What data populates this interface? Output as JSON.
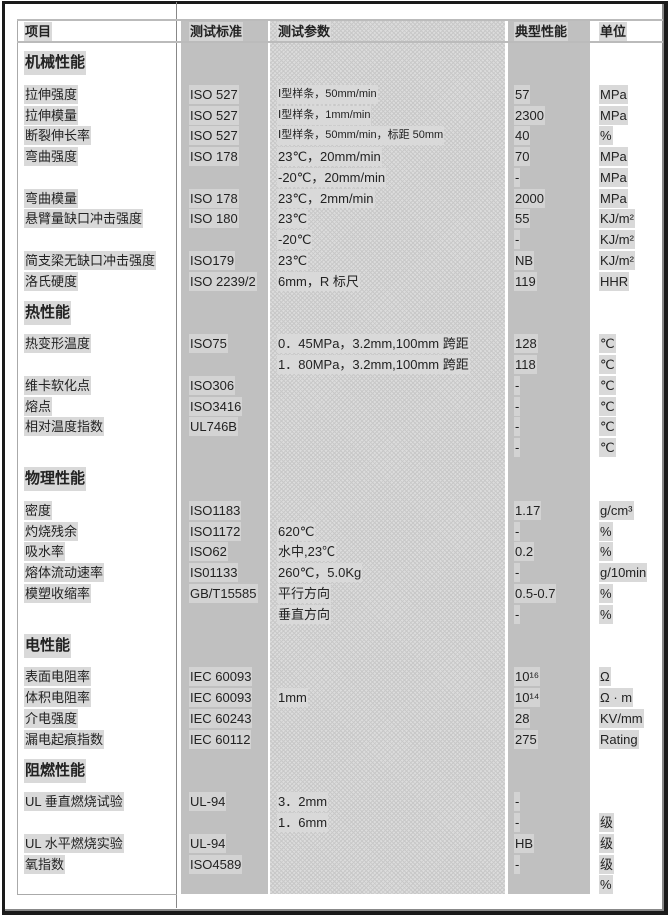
{
  "header": {
    "item": "项目",
    "standard": "测试标准",
    "params": "测试参数",
    "typical": "典型性能",
    "unit": "单位"
  },
  "rows": [
    {
      "type": "section",
      "item": "机械性能"
    },
    {
      "item": "拉伸强度",
      "std": "ISO 527",
      "param": "Ⅰ型样条，50mm/min",
      "value": "57",
      "unit": "MPa",
      "small": true
    },
    {
      "item": "拉伸模量",
      "std": "ISO 527",
      "param": "Ⅰ型样条，1mm/min",
      "value": "2300",
      "unit": "MPa",
      "small": true
    },
    {
      "item": "断裂伸长率",
      "std": "ISO 527",
      "param": "Ⅰ型样条，50mm/min，标距 50mm",
      "value": "40",
      "unit": "%",
      "small": true
    },
    {
      "item": "弯曲强度",
      "std": "ISO 178",
      "param": "23℃，20mm/min",
      "value": "70",
      "unit": "MPa"
    },
    {
      "item": "",
      "std": "",
      "param": "-20℃，20mm/min",
      "value": "-",
      "unit": "MPa"
    },
    {
      "item": "弯曲模量",
      "std": "ISO 178",
      "param": "23℃，2mm/min",
      "value": "2000",
      "unit": "MPa"
    },
    {
      "item": "悬臂量缺口冲击强度",
      "std": "ISO 180",
      "param": "23℃",
      "value": "55",
      "unit": "KJ/m²"
    },
    {
      "item": "",
      "std": "",
      "param": "-20℃",
      "value": "-",
      "unit": "KJ/m²"
    },
    {
      "item": "简支梁无缺口冲击强度",
      "std": "ISO179",
      "param": "23℃",
      "value": "NB",
      "unit": "KJ/m²"
    },
    {
      "item": "洛氏硬度",
      "std": "ISO 2239/2",
      "param": "6mm，R 标尺",
      "value": "119",
      "unit": "HHR"
    },
    {
      "type": "section",
      "item": "热性能"
    },
    {
      "item": "热变形温度",
      "std": "ISO75",
      "param": "0．45MPa，3.2mm,100mm 跨距",
      "value": "128",
      "unit": "℃"
    },
    {
      "item": "",
      "std": "",
      "param": "1．80MPa，3.2mm,100mm 跨距",
      "value": "118",
      "unit": "℃"
    },
    {
      "item": "维卡软化点",
      "std": "ISO306",
      "param": "",
      "value": "-",
      "unit": "℃"
    },
    {
      "item": "熔点",
      "std": "ISO3416",
      "param": "",
      "value": "-",
      "unit": "℃"
    },
    {
      "item": "相对温度指数",
      "std": "UL746B",
      "param": "",
      "value": "-",
      "unit": "℃"
    },
    {
      "item": "",
      "std": "",
      "param": "",
      "value": "-",
      "unit": "℃"
    },
    {
      "type": "section",
      "item": "物理性能"
    },
    {
      "item": "密度",
      "std": "ISO1183",
      "param": "",
      "value": "1.17",
      "unit": "g/cm³"
    },
    {
      "item": "灼烧残余",
      "std": "ISO1172",
      "param": "620℃",
      "value": "-",
      "unit": "%"
    },
    {
      "item": "吸水率",
      "std": "ISO62",
      "param": "水中,23℃",
      "value": "0.2",
      "unit": "%"
    },
    {
      "item": "熔体流动速率",
      "std": "IS01133",
      "param": "260℃，5.0Kg",
      "value": "-",
      "unit": "g/10min"
    },
    {
      "item": "模塑收缩率",
      "std": "GB/T15585",
      "param": "平行方向",
      "value": "0.5-0.7",
      "unit": "%"
    },
    {
      "item": "",
      "std": "",
      "param": "垂直方向",
      "value": "-",
      "unit": "%"
    },
    {
      "type": "section",
      "item": "电性能"
    },
    {
      "item": "表面电阻率",
      "std": "IEC 60093",
      "param": "",
      "value": "10¹⁶",
      "unit": "Ω"
    },
    {
      "item": "体积电阻率",
      "std": "IEC 60093",
      "param": "1mm",
      "value": "10¹⁴",
      "unit": "Ω · m"
    },
    {
      "item": "介电强度",
      "std": "IEC 60243",
      "param": "",
      "value": "28",
      "unit": "KV/mm"
    },
    {
      "item": "漏电起痕指数",
      "std": "IEC 60112",
      "param": "",
      "value": "275",
      "unit": "Rating"
    },
    {
      "type": "section",
      "item": "阻燃性能"
    },
    {
      "item": "UL 垂直燃烧试验",
      "std": "UL-94",
      "param": "3．2mm",
      "value": "-",
      "unit": ""
    },
    {
      "item": "",
      "std": "",
      "param": "1．6mm",
      "value": "-",
      "unit": "级"
    },
    {
      "item": "UL 水平燃烧实验",
      "std": "UL-94",
      "param": "",
      "value": "HB",
      "unit": "级"
    },
    {
      "item": "氧指数",
      "std": "ISO4589",
      "param": "",
      "value": "-",
      "unit": "级"
    },
    {
      "item": "",
      "std": "",
      "param": "",
      "value": "",
      "unit": "%"
    }
  ]
}
